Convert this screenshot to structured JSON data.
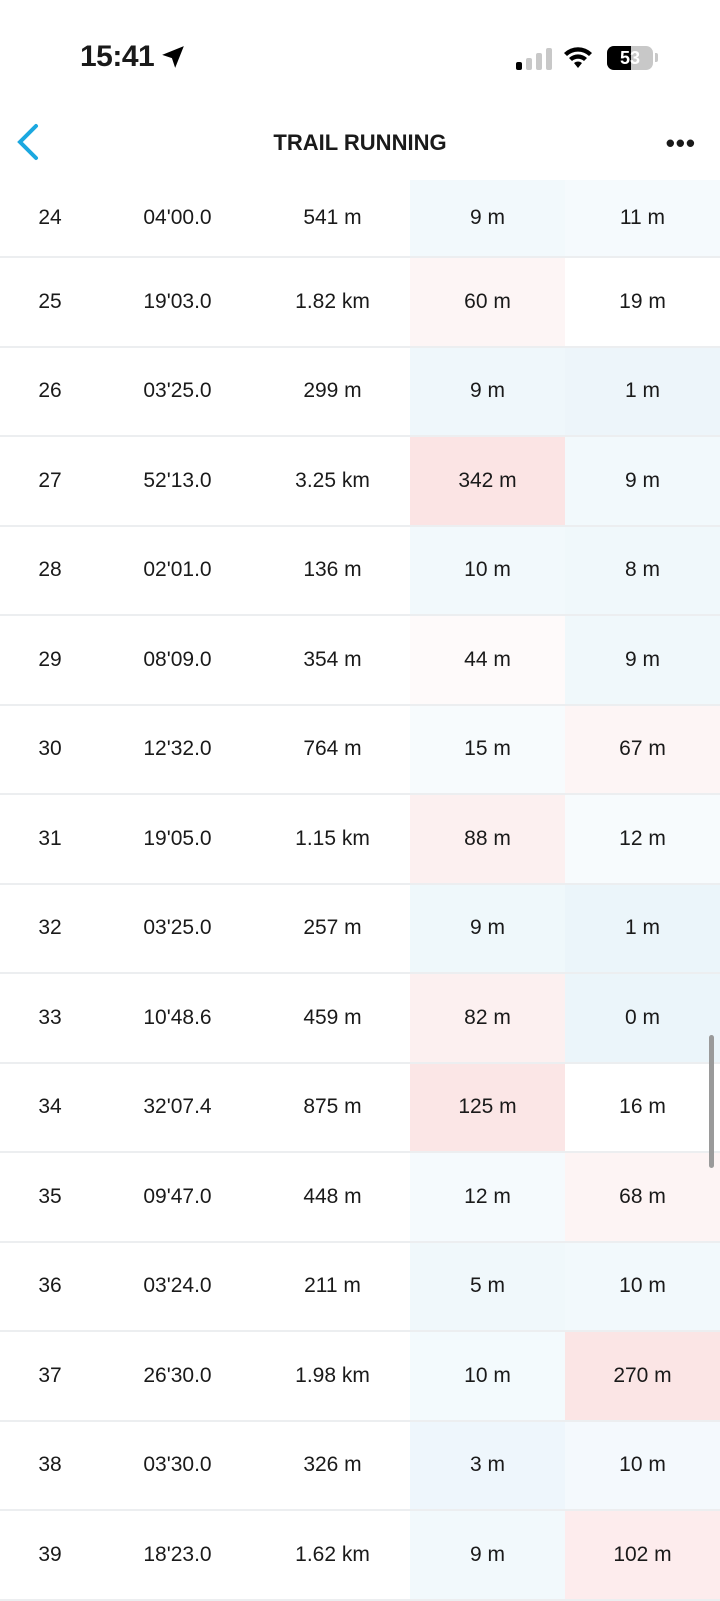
{
  "status_bar": {
    "time": "15:41",
    "battery": "53",
    "icons": [
      "location-arrow-icon",
      "cellular-signal-icon",
      "wifi-icon",
      "battery-icon"
    ]
  },
  "header": {
    "title": "TRAIL RUNNING",
    "back_icon": "chevron-left-icon",
    "more_icon": "more-horizontal-icon",
    "accent": "#1ba8e0"
  },
  "laps": [
    {
      "n": "24",
      "time": "04'00.0",
      "dist": "541 m",
      "ascent": "9 m",
      "descent": "11 m",
      "ac": "#f2f9fc",
      "dc": "#f5fafd"
    },
    {
      "n": "25",
      "time": "19'03.0",
      "dist": "1.82 km",
      "ascent": "60 m",
      "descent": "19 m",
      "ac": "#fdf5f5",
      "dc": "#ffffff"
    },
    {
      "n": "26",
      "time": "03'25.0",
      "dist": "299 m",
      "ascent": "9 m",
      "descent": "1 m",
      "ac": "#eff7fb",
      "dc": "#edf5fa"
    },
    {
      "n": "27",
      "time": "52'13.0",
      "dist": "3.25 km",
      "ascent": "342 m",
      "descent": "9 m",
      "ac": "#fbe4e4",
      "dc": "#f2f9fc"
    },
    {
      "n": "28",
      "time": "02'01.0",
      "dist": "136 m",
      "ascent": "10 m",
      "descent": "8 m",
      "ac": "#f2f9fc",
      "dc": "#f0f8fb"
    },
    {
      "n": "29",
      "time": "08'09.0",
      "dist": "354 m",
      "ascent": "44 m",
      "descent": "9 m",
      "ac": "#fefafa",
      "dc": "#f0f8fb"
    },
    {
      "n": "30",
      "time": "12'32.0",
      "dist": "764 m",
      "ascent": "15 m",
      "descent": "67 m",
      "ac": "#f7fbfd",
      "dc": "#fdf5f5"
    },
    {
      "n": "31",
      "time": "19'05.0",
      "dist": "1.15 km",
      "ascent": "88 m",
      "descent": "12 m",
      "ac": "#fcf0f0",
      "dc": "#f7fbfd"
    },
    {
      "n": "32",
      "time": "03'25.0",
      "dist": "257 m",
      "ascent": "9 m",
      "descent": "1 m",
      "ac": "#eff8fb",
      "dc": "#ebf5fa"
    },
    {
      "n": "33",
      "time": "10'48.6",
      "dist": "459 m",
      "ascent": "82 m",
      "descent": "0 m",
      "ac": "#fcf0f0",
      "dc": "#ebf5fa"
    },
    {
      "n": "34",
      "time": "32'07.4",
      "dist": "875 m",
      "ascent": "125 m",
      "descent": "16 m",
      "ac": "#fbe6e6",
      "dc": "#ffffff"
    },
    {
      "n": "35",
      "time": "09'47.0",
      "dist": "448 m",
      "ascent": "12 m",
      "descent": "68 m",
      "ac": "#f5fafd",
      "dc": "#fdf4f4"
    },
    {
      "n": "36",
      "time": "03'24.0",
      "dist": "211 m",
      "ascent": "5 m",
      "descent": "10 m",
      "ac": "#f0f8fb",
      "dc": "#f2f9fc"
    },
    {
      "n": "37",
      "time": "26'30.0",
      "dist": "1.98 km",
      "ascent": "10 m",
      "descent": "270 m",
      "ac": "#f3fafd",
      "dc": "#fbe5e5"
    },
    {
      "n": "38",
      "time": "03'30.0",
      "dist": "326 m",
      "ascent": "3 m",
      "descent": "10 m",
      "ac": "#eef6fc",
      "dc": "#f4f9fd"
    },
    {
      "n": "39",
      "time": "18'23.0",
      "dist": "1.62 km",
      "ascent": "9 m",
      "descent": "102 m",
      "ac": "#f2f9fc",
      "dc": "#fdeced"
    }
  ]
}
